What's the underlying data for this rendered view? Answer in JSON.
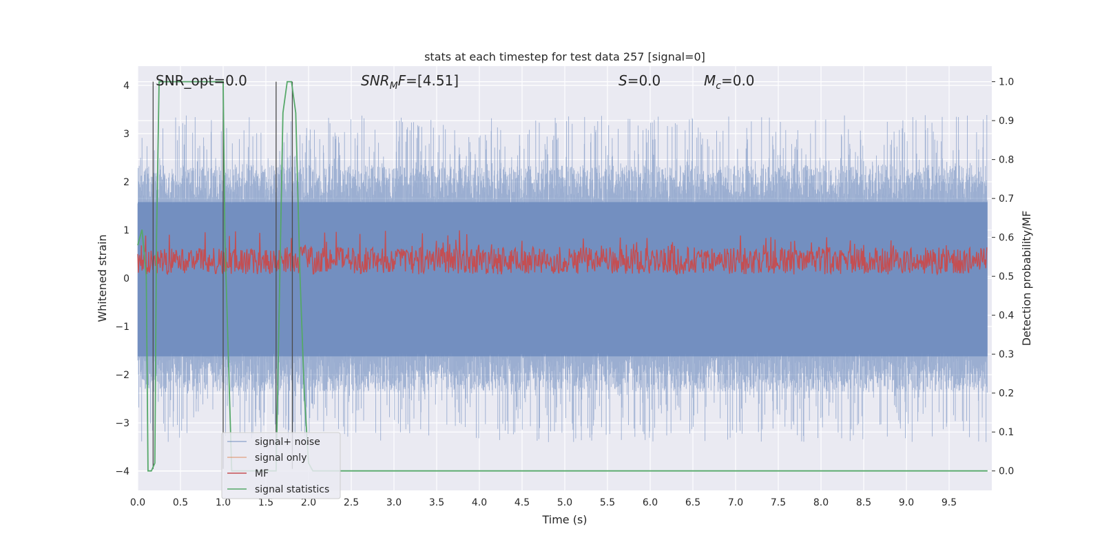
{
  "chart_data": {
    "type": "line",
    "title": "stats at each timestep for test data 257 [signal=0]",
    "xlabel": "Time (s)",
    "ylabel_left": "Whitened strain",
    "ylabel_right": "Detection probability/MF",
    "xlim": [
      0.0,
      10.0
    ],
    "ylim_left": [
      -4.4,
      4.4
    ],
    "ylim_right": [
      -0.05,
      1.04
    ],
    "x_ticks": [
      0.0,
      0.5,
      1.0,
      1.5,
      2.0,
      2.5,
      3.0,
      3.5,
      4.0,
      4.5,
      5.0,
      5.5,
      6.0,
      6.5,
      7.0,
      7.5,
      8.0,
      8.5,
      9.0,
      9.5
    ],
    "x_tick_labels": [
      "0.0",
      "0.5",
      "1.0",
      "1.5",
      "2.0",
      "2.5",
      "3.0",
      "3.5",
      "4.0",
      "4.5",
      "5.0",
      "5.5",
      "6.0",
      "6.5",
      "7.0",
      "7.5",
      "8.0",
      "8.5",
      "9.0",
      "9.5"
    ],
    "y_left_ticks": [
      4,
      3,
      2,
      1,
      0,
      -1,
      -2,
      -3,
      -4
    ],
    "y_left_tick_labels": [
      "4",
      "3",
      "2",
      "1",
      "0",
      "−1",
      "−2",
      "−3",
      "−4"
    ],
    "y_right_ticks": [
      1.0,
      0.9,
      0.8,
      0.7,
      0.6,
      0.5,
      0.4,
      0.3,
      0.2,
      0.1,
      0.0
    ],
    "y_right_tick_labels": [
      "1.0",
      "0.9",
      "0.8",
      "0.7",
      "0.6",
      "0.5",
      "0.4",
      "0.3",
      "0.2",
      "0.1",
      "0.0"
    ],
    "grid": true,
    "legend_position": "lower-left",
    "annotations": {
      "snr_opt": "SNR_opt=0.0",
      "snr_mf_italic": "SNR",
      "snr_mf_sub": "M",
      "snr_mf_italic2": "F",
      "snr_mf_value": "=[4.51]",
      "s_italic": "S",
      "s_value": "=0.0",
      "mc_italic": "M",
      "mc_sub": "c",
      "mc_value": "=0.0"
    },
    "series": [
      {
        "name": "signal+ noise",
        "color": "#4c72b0",
        "axis": "left",
        "description_amplitude": [
          -3.7,
          3.7
        ]
      },
      {
        "name": "signal only",
        "color": "#dd8452",
        "axis": "left",
        "values": []
      },
      {
        "name": "MF",
        "color": "#c44e52",
        "axis": "right",
        "range": [
          0.5,
          0.62
        ]
      },
      {
        "name": "signal statistics",
        "color": "#55a868",
        "axis": "right",
        "x": [
          0.0,
          0.05,
          0.1,
          0.12,
          0.16,
          0.2,
          0.22,
          0.25,
          0.3,
          0.5,
          0.8,
          1.0,
          1.02,
          1.1,
          1.3,
          1.5,
          1.62,
          1.7,
          1.75,
          1.8,
          1.85,
          1.9,
          1.95,
          2.0,
          2.05,
          2.2,
          3.0,
          5.0,
          7.0,
          9.0,
          9.95
        ],
        "y": [
          0.58,
          0.62,
          0.5,
          0.0,
          0.0,
          0.02,
          0.6,
          1.0,
          1.0,
          1.0,
          1.0,
          1.0,
          0.6,
          0.0,
          0.0,
          0.0,
          0.0,
          0.92,
          1.0,
          1.0,
          0.92,
          0.5,
          0.2,
          0.02,
          0.0,
          0.0,
          0.0,
          0.0,
          0.0,
          0.0,
          0.0
        ]
      }
    ],
    "vertical_markers_x": [
      0.18,
      1.0,
      1.62,
      1.81
    ]
  }
}
